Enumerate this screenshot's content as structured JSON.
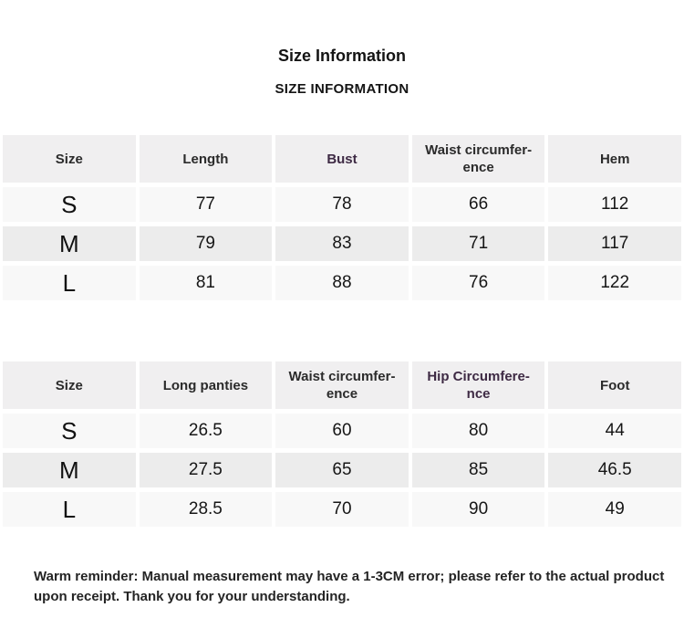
{
  "page": {
    "title": "Size Information",
    "subtitle": "SIZE INFORMATION",
    "footer": "Warm reminder: Manual measurement may have a 1-3CM error; please refer to the actual product upon receipt. Thank you for your understanding."
  },
  "colors": {
    "accent": "#3e2a44",
    "header_bg": "#f0eff0",
    "row_gray": "#ececec",
    "row_light": "#f8f8f8",
    "text_dark": "#1a1a1a"
  },
  "tables": [
    {
      "name": "garment-size-table",
      "headers": [
        {
          "label": "Size",
          "accent": false
        },
        {
          "label": "Length",
          "accent": false
        },
        {
          "label": "Bust",
          "accent": true
        },
        {
          "label": "Waist circumfer-\nence",
          "accent": false
        },
        {
          "label": "Hem",
          "accent": false
        }
      ],
      "rows": [
        {
          "size": "S",
          "values": [
            "77",
            "78",
            "66",
            "112"
          ]
        },
        {
          "size": "M",
          "values": [
            "79",
            "83",
            "71",
            "117"
          ]
        },
        {
          "size": "L",
          "values": [
            "81",
            "88",
            "76",
            "122"
          ]
        }
      ]
    },
    {
      "name": "panties-size-table",
      "headers": [
        {
          "label": "Size",
          "accent": false
        },
        {
          "label": "Long panties",
          "accent": false
        },
        {
          "label": "Waist circumfer-\nence",
          "accent": false
        },
        {
          "label": "Hip Circumfere-\nnce",
          "accent": true
        },
        {
          "label": "Foot",
          "accent": false
        }
      ],
      "rows": [
        {
          "size": "S",
          "values": [
            "26.5",
            "60",
            "80",
            "44"
          ]
        },
        {
          "size": "M",
          "values": [
            "27.5",
            "65",
            "85",
            "46.5"
          ]
        },
        {
          "size": "L",
          "values": [
            "28.5",
            "70",
            "90",
            "49"
          ]
        }
      ]
    }
  ]
}
